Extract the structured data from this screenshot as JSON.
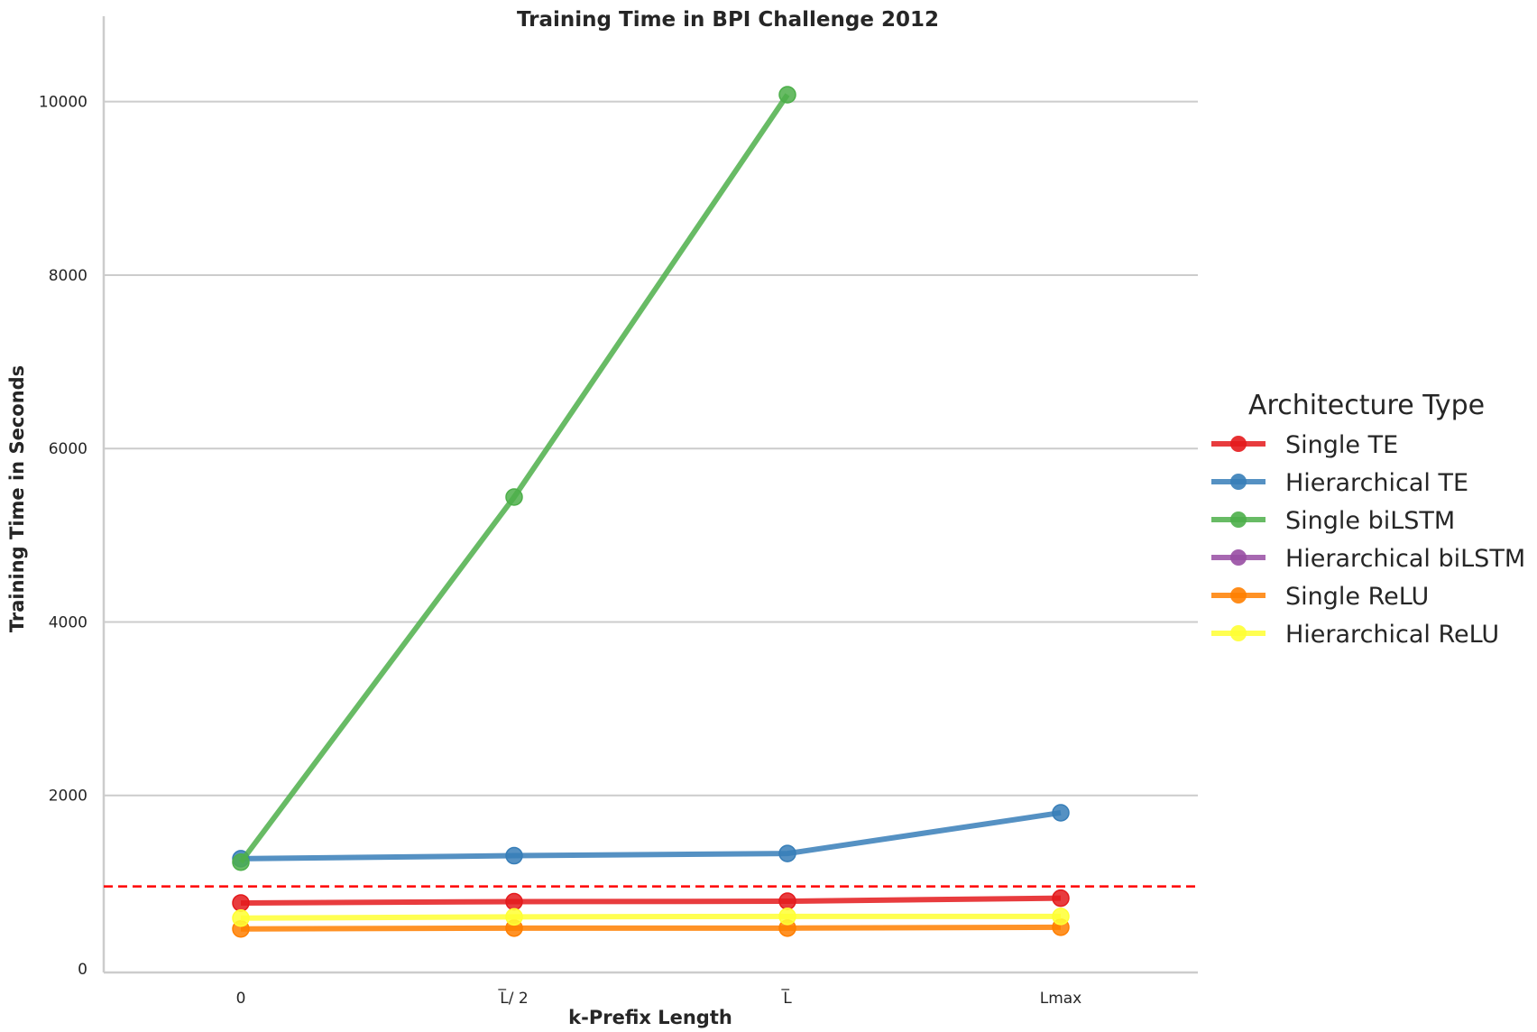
{
  "chart_data": {
    "type": "line",
    "title": "Training Time in BPI Challenge 2012",
    "xlabel": "k-Prefix Length",
    "ylabel": "Training Time in Seconds",
    "categories": [
      "0",
      "L̅/ 2",
      "L̅",
      "Lmax"
    ],
    "ylim": [
      0,
      10600
    ],
    "yticks": [
      0,
      2000,
      4000,
      6000,
      8000,
      10000
    ],
    "grid": "horizontal",
    "legend_title": "Architecture Type",
    "legend_position": "right",
    "reference_line": {
      "value": 950,
      "style": "dashed",
      "color": "#ff0000"
    },
    "series": [
      {
        "name": "Single TE",
        "color": "#e41a1c",
        "values": [
          760,
          775,
          780,
          815
        ]
      },
      {
        "name": "Hierarchical TE",
        "color": "#377eb8",
        "values": [
          1270,
          1305,
          1330,
          1800
        ]
      },
      {
        "name": "Single biLSTM",
        "color": "#4daf4a",
        "values": [
          1230,
          5440,
          10080,
          null
        ]
      },
      {
        "name": "Hierarchical biLSTM",
        "color": "#984ea3",
        "values": [
          null,
          null,
          null,
          null
        ]
      },
      {
        "name": "Single ReLU",
        "color": "#ff7f00",
        "values": [
          460,
          470,
          470,
          480
        ]
      },
      {
        "name": "Hierarchical ReLU",
        "color": "#ffff33",
        "values": [
          585,
          600,
          605,
          605
        ]
      }
    ]
  }
}
